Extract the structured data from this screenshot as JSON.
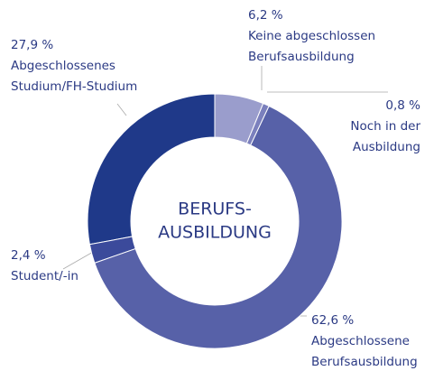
{
  "chart_data": {
    "type": "donut",
    "title": [
      "BERUFS-",
      "AUSBILDUNG"
    ],
    "categories": [
      [
        "Keine abgeschlossen",
        "Berufsausbildung"
      ],
      [
        "Noch in der",
        "Ausbildung"
      ],
      [
        "Abgeschlossene",
        "Berufsausbildung"
      ],
      [
        "Student/-in"
      ],
      [
        "Abgeschlossenes",
        "Studium/FH-Studium"
      ]
    ],
    "values": [
      6.2,
      0.8,
      62.6,
      2.4,
      27.9
    ],
    "value_labels": [
      "6,2 %",
      "0,8 %",
      "62,6 %",
      "2,4 %",
      "27,9 %"
    ],
    "colors": [
      "#9a9dcc",
      "#7b80bd",
      "#5761a8",
      "#3b4a9b",
      "#1f3989"
    ]
  }
}
